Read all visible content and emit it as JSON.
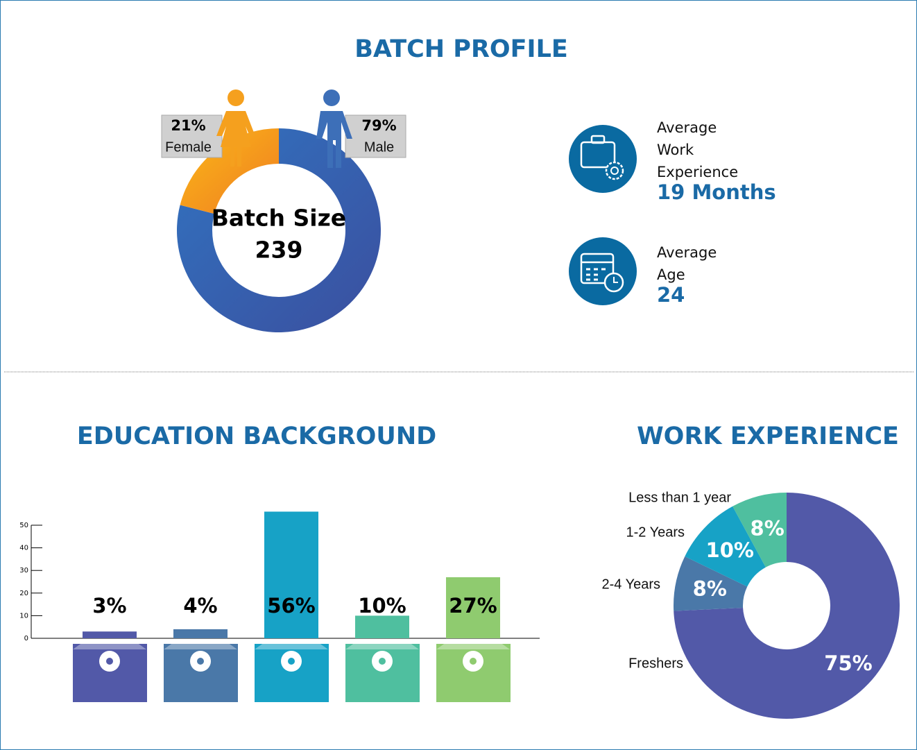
{
  "title": "BATCH PROFILE",
  "stats": [
    {
      "label": "Average Work Experience",
      "value": "19 Months"
    },
    {
      "label": "Average Age",
      "value": "24"
    }
  ],
  "chart_data": [
    {
      "type": "donut",
      "center_label": "Batch Size",
      "center_value": 239,
      "categories": [
        "Male",
        "Female"
      ],
      "values": [
        79,
        21
      ],
      "value_labels": [
        "79%",
        "21%"
      ],
      "colors": [
        "#3b63ad",
        "#f5a01e"
      ]
    },
    {
      "type": "bar",
      "title": "EDUCATION BACKGROUND",
      "categories": [
        null,
        null,
        null,
        null,
        null
      ],
      "values": [
        3,
        4,
        56,
        10,
        27
      ],
      "value_labels": [
        "3%",
        "4%",
        "56%",
        "10%",
        "27%"
      ],
      "colors": [
        "#5259a8",
        "#4a78a8",
        "#17a2c6",
        "#4fbf9f",
        "#8fcb6f"
      ],
      "ylim": [
        0,
        50
      ],
      "yticks": [
        0,
        10,
        20,
        30,
        40,
        50
      ]
    },
    {
      "type": "donut",
      "title": "WORK EXPERIENCE",
      "categories": [
        "Freshers",
        "2-4 Years",
        "1-2 Years",
        "Less than 1 year"
      ],
      "values": [
        75,
        8,
        10,
        8
      ],
      "value_labels": [
        "75%",
        "8%",
        "10%",
        "8%"
      ],
      "colors": [
        "#5259a8",
        "#4a78a8",
        "#17a2c6",
        "#4fbf9f"
      ]
    }
  ]
}
